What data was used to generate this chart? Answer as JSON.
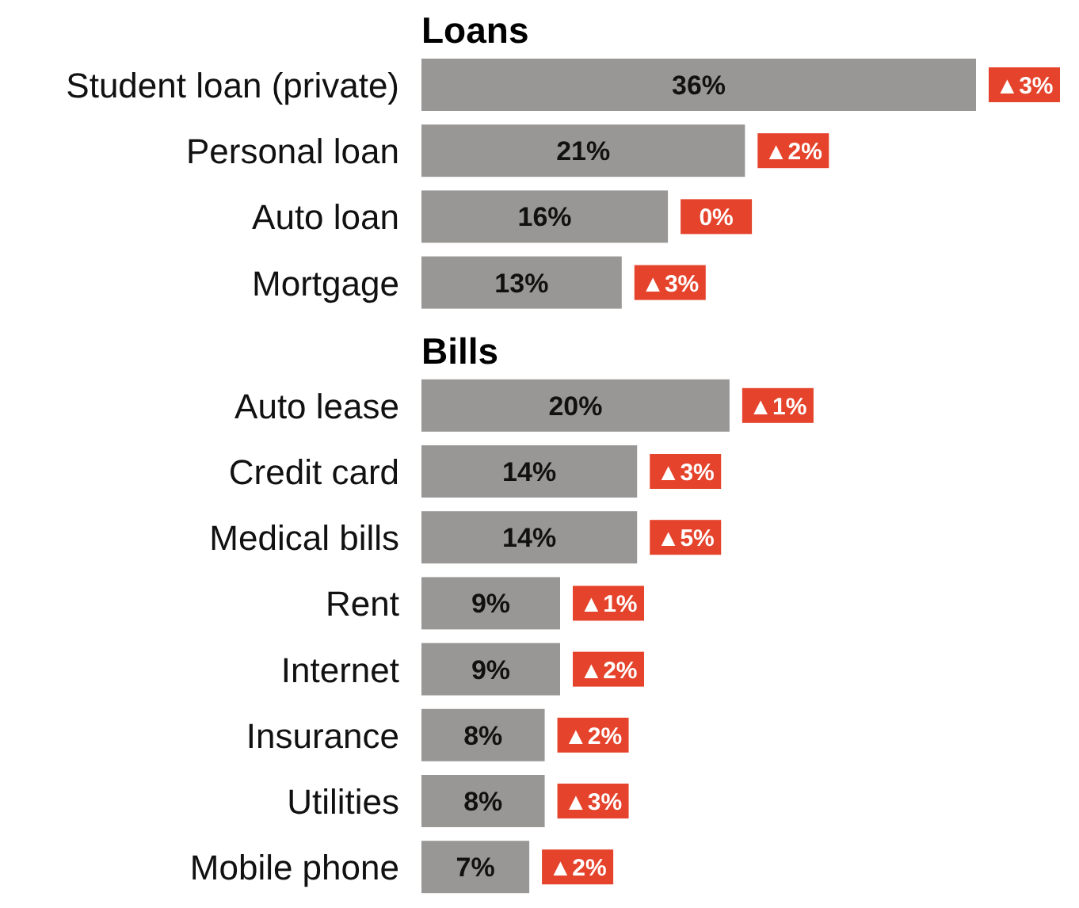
{
  "chart_data": [
    {
      "type": "bar",
      "title": "Loans",
      "orientation": "horizontal",
      "categories": [
        "Student loan (private)",
        "Personal loan",
        "Auto loan",
        "Mortgage"
      ],
      "series": [
        {
          "type": "bar",
          "color": "#999795",
          "values": [
            36,
            21,
            16,
            13
          ],
          "value_labels": [
            "36%",
            "21%",
            "16%",
            "13%"
          ]
        }
      ],
      "annotations": [
        {
          "text": "▲3%",
          "x": 36,
          "y": "Student loan (private)"
        },
        {
          "text": "▲2%",
          "x": 21,
          "y": "Personal loan"
        },
        {
          "text": "0%",
          "x": 16,
          "y": "Auto loan"
        },
        {
          "text": "▲3%",
          "x": 13,
          "y": "Mortgage"
        }
      ]
    },
    {
      "type": "bar",
      "title": "Bills",
      "orientation": "horizontal",
      "categories": [
        "Auto lease",
        "Credit card",
        "Medical bills",
        "Rent",
        "Internet",
        "Insurance",
        "Utilities",
        "Mobile phone"
      ],
      "series": [
        {
          "type": "bar",
          "color": "#999795",
          "values": [
            20,
            14,
            14,
            9,
            9,
            8,
            8,
            7
          ],
          "value_labels": [
            "20%",
            "14%",
            "14%",
            "9%",
            "9%",
            "8%",
            "8%",
            "7%"
          ]
        }
      ],
      "annotations": [
        {
          "text": "▲1%",
          "x": 20,
          "y": "Auto lease"
        },
        {
          "text": "▲3%",
          "x": 14,
          "y": "Credit card"
        },
        {
          "text": "▲5%",
          "x": 14,
          "y": "Medical bills"
        },
        {
          "text": "▲1%",
          "x": 9,
          "y": "Rent"
        },
        {
          "text": "▲2%",
          "x": 9,
          "y": "Internet"
        },
        {
          "text": "▲2%",
          "x": 8,
          "y": "Insurance"
        },
        {
          "text": "▲3%",
          "x": 8,
          "y": "Utilities"
        },
        {
          "text": "▲2%",
          "x": 7,
          "y": "Mobile phone"
        }
      ]
    }
  ]
}
